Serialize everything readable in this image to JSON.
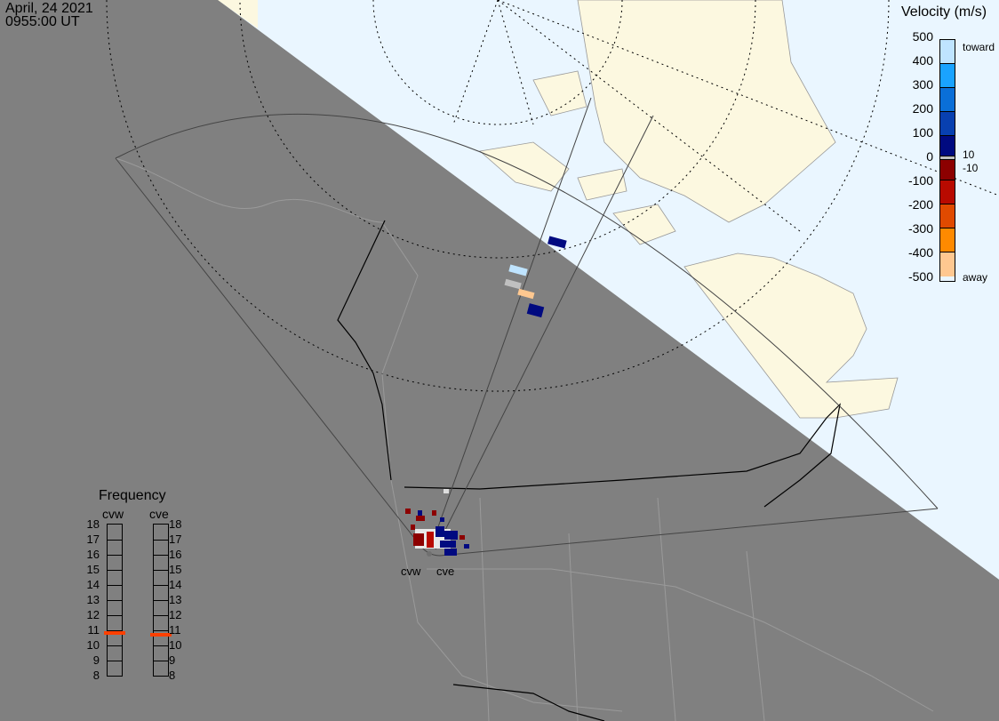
{
  "header": {
    "date": "April, 24 2021",
    "time": "0955:00 UT"
  },
  "colorbar": {
    "title": "Velocity (m/s)",
    "ticks": [
      "500",
      "400",
      "300",
      "200",
      "100",
      "0",
      "-100",
      "-200",
      "-300",
      "-400",
      "-500"
    ],
    "toward_label": "toward",
    "away_label": "away",
    "ground_scatter_labels": [
      "10",
      "-10"
    ],
    "colors": [
      "#bfe4ff",
      "#1aa3ff",
      "#0a6fd8",
      "#0840b0",
      "#000a80",
      "#c0c0c0",
      "#8c0000",
      "#b80a00",
      "#e04a00",
      "#ff8a00",
      "#ffc890"
    ]
  },
  "frequency": {
    "title": "Frequency",
    "unit_scale": [
      "18",
      "17",
      "16",
      "15",
      "14",
      "13",
      "12",
      "11",
      "10",
      "9",
      "8"
    ],
    "radars": [
      {
        "name": "cvw",
        "value_mhz": 10.8
      },
      {
        "name": "cve",
        "value_mhz": 10.7
      }
    ],
    "marker_color": "#ff4000"
  },
  "map": {
    "radar_labels": [
      "cvw",
      "cve"
    ],
    "night_color": "#808080",
    "ocean_color": "#eaf6ff",
    "land_color": "#fcf8e0"
  }
}
